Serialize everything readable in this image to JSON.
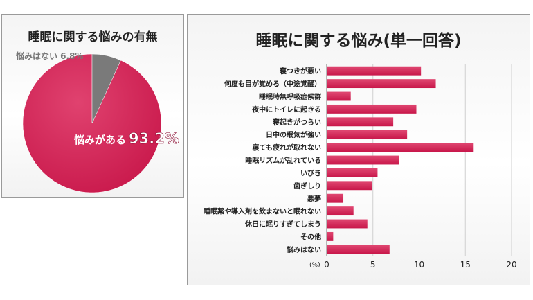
{
  "pie": {
    "title": "睡眠に関する悩みの有無",
    "colors": {
      "yes": "#c8174a",
      "no": "#7a7a7a"
    },
    "chart_data": {
      "type": "pie",
      "title": "睡眠に関する悩みの有無",
      "slices": [
        {
          "label": "悩みがある",
          "value": 93.2,
          "value_text": "93.2%"
        },
        {
          "label": "悩みはない",
          "value": 6.8,
          "value_text": "6.8%"
        }
      ]
    }
  },
  "bar": {
    "title": "睡眠に関する悩み(単一回答)",
    "bar_color": "#c8174a",
    "chart_data": {
      "type": "bar",
      "orientation": "horizontal",
      "title": "睡眠に関する悩み(単一回答)",
      "xlabel": "(%)",
      "xlim": [
        0,
        20
      ],
      "xticks": [
        0,
        5,
        10,
        15,
        20
      ],
      "grid": true,
      "categories": [
        "寝つきが悪い",
        "何度も目が覚める（中途覚醒）",
        "睡眠時無呼吸症候群",
        "夜中にトイレに起きる",
        "寝起きがつらい",
        "日中の眠気が強い",
        "寝ても疲れが取れない",
        "睡眠リズムが乱れている",
        "いびき",
        "歯ぎしり",
        "悪夢",
        "睡眠薬や導入剤を飲まないと眠れない",
        "休日に眠りすぎてしまう",
        "その他",
        "悩みはない"
      ],
      "values": [
        10.2,
        11.8,
        2.6,
        9.7,
        7.2,
        8.7,
        15.9,
        7.8,
        5.5,
        4.9,
        1.8,
        2.9,
        4.4,
        0.7,
        6.8
      ]
    }
  }
}
